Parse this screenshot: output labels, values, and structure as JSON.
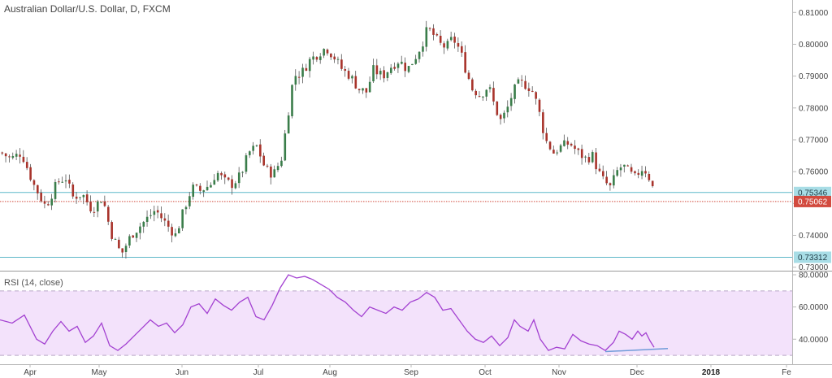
{
  "header": {
    "symbol_title": "Australian Dollar/U.S. Dollar, D, FXCM"
  },
  "rsi_panel": {
    "title": "RSI (14, close)"
  },
  "colors": {
    "bull": "#3a7d4a",
    "bear": "#a8332b",
    "hline": "#5fb8c9",
    "last_price": "#d24a3e",
    "rsi_line": "#a341d1",
    "rsi_fill": "#f3e2fb",
    "rsi_trend": "#6f9bd9"
  },
  "chart_data": [
    {
      "type": "candlestick",
      "title": "Australian Dollar/U.S. Dollar, D, FXCM",
      "ylim": [
        0.7289,
        0.8139
      ],
      "y_ticks": [
        "0.81000",
        "0.80000",
        "0.79000",
        "0.78000",
        "0.77000",
        "0.76000",
        "0.75000",
        "0.74000",
        "0.73000"
      ],
      "x_ticks": [
        "Apr",
        "May",
        "Jun",
        "Jul",
        "Aug",
        "Sep",
        "Oct",
        "Nov",
        "Dec",
        "2018",
        "Fe"
      ],
      "horizontal_lines": [
        {
          "value": 0.75346,
          "label": "0.75346",
          "style": "resistance"
        },
        {
          "value": 0.73312,
          "label": "0.73312",
          "style": "support"
        }
      ],
      "last_price": {
        "value": 0.75062,
        "label": "0.75062"
      },
      "path_anchors": [
        [
          0,
          0.766
        ],
        [
          12,
          0.764
        ],
        [
          25,
          0.766
        ],
        [
          40,
          0.756
        ],
        [
          55,
          0.749
        ],
        [
          70,
          0.757
        ],
        [
          80,
          0.758
        ],
        [
          88,
          0.752
        ],
        [
          100,
          0.753
        ],
        [
          112,
          0.748
        ],
        [
          125,
          0.752
        ],
        [
          135,
          0.741
        ],
        [
          148,
          0.734
        ],
        [
          160,
          0.74
        ],
        [
          175,
          0.744
        ],
        [
          190,
          0.748
        ],
        [
          205,
          0.743
        ],
        [
          215,
          0.74
        ],
        [
          225,
          0.748
        ],
        [
          235,
          0.755
        ],
        [
          245,
          0.754
        ],
        [
          258,
          0.756
        ],
        [
          265,
          0.76
        ],
        [
          275,
          0.757
        ],
        [
          285,
          0.756
        ],
        [
          295,
          0.759
        ],
        [
          305,
          0.766
        ],
        [
          315,
          0.768
        ],
        [
          325,
          0.761
        ],
        [
          335,
          0.759
        ],
        [
          345,
          0.764
        ],
        [
          352,
          0.776
        ],
        [
          360,
          0.79
        ],
        [
          370,
          0.791
        ],
        [
          380,
          0.795
        ],
        [
          390,
          0.797
        ],
        [
          400,
          0.799
        ],
        [
          410,
          0.796
        ],
        [
          420,
          0.792
        ],
        [
          430,
          0.79
        ],
        [
          440,
          0.786
        ],
        [
          450,
          0.785
        ],
        [
          458,
          0.792
        ],
        [
          470,
          0.79
        ],
        [
          480,
          0.793
        ],
        [
          490,
          0.795
        ],
        [
          500,
          0.792
        ],
        [
          510,
          0.796
        ],
        [
          518,
          0.8
        ],
        [
          525,
          0.805
        ],
        [
          532,
          0.803
        ],
        [
          540,
          0.8
        ],
        [
          548,
          0.799
        ],
        [
          556,
          0.802
        ],
        [
          565,
          0.798
        ],
        [
          572,
          0.792
        ],
        [
          580,
          0.786
        ],
        [
          590,
          0.784
        ],
        [
          600,
          0.787
        ],
        [
          608,
          0.78
        ],
        [
          615,
          0.776
        ],
        [
          622,
          0.779
        ],
        [
          630,
          0.785
        ],
        [
          638,
          0.788
        ],
        [
          648,
          0.787
        ],
        [
          655,
          0.785
        ],
        [
          662,
          0.779
        ],
        [
          670,
          0.77
        ],
        [
          680,
          0.766
        ],
        [
          690,
          0.768
        ],
        [
          700,
          0.769
        ],
        [
          710,
          0.766
        ],
        [
          720,
          0.764
        ],
        [
          728,
          0.765
        ],
        [
          735,
          0.76
        ],
        [
          742,
          0.757
        ],
        [
          750,
          0.755
        ],
        [
          758,
          0.76
        ],
        [
          765,
          0.762
        ],
        [
          772,
          0.76
        ],
        [
          780,
          0.758
        ],
        [
          788,
          0.761
        ],
        [
          795,
          0.76
        ],
        [
          802,
          0.755
        ],
        [
          806,
          0.7506
        ]
      ]
    },
    {
      "type": "line",
      "title": "RSI (14, close)",
      "ylim": [
        25,
        80
      ],
      "y_ticks": [
        "80.0000",
        "60.0000",
        "40.0000"
      ],
      "band": [
        30,
        70
      ],
      "series": [
        {
          "values": [
            [
              0,
              52
            ],
            [
              15,
              50
            ],
            [
              30,
              55
            ],
            [
              45,
              40
            ],
            [
              55,
              37
            ],
            [
              65,
              45
            ],
            [
              75,
              51
            ],
            [
              85,
              45
            ],
            [
              95,
              48
            ],
            [
              105,
              38
            ],
            [
              115,
              42
            ],
            [
              125,
              50
            ],
            [
              135,
              36
            ],
            [
              145,
              33
            ],
            [
              155,
              37
            ],
            [
              165,
              42
            ],
            [
              175,
              47
            ],
            [
              185,
              52
            ],
            [
              195,
              48
            ],
            [
              205,
              50
            ],
            [
              215,
              44
            ],
            [
              225,
              49
            ],
            [
              235,
              60
            ],
            [
              245,
              62
            ],
            [
              255,
              56
            ],
            [
              265,
              65
            ],
            [
              275,
              61
            ],
            [
              285,
              58
            ],
            [
              295,
              63
            ],
            [
              305,
              66
            ],
            [
              315,
              54
            ],
            [
              325,
              52
            ],
            [
              335,
              61
            ],
            [
              345,
              72
            ],
            [
              355,
              80
            ],
            [
              365,
              78
            ],
            [
              375,
              79
            ],
            [
              385,
              77
            ],
            [
              395,
              74
            ],
            [
              405,
              71
            ],
            [
              415,
              66
            ],
            [
              425,
              63
            ],
            [
              435,
              58
            ],
            [
              445,
              54
            ],
            [
              455,
              60
            ],
            [
              465,
              58
            ],
            [
              475,
              56
            ],
            [
              485,
              60
            ],
            [
              495,
              58
            ],
            [
              505,
              63
            ],
            [
              515,
              65
            ],
            [
              525,
              69
            ],
            [
              535,
              66
            ],
            [
              545,
              58
            ],
            [
              555,
              59
            ],
            [
              565,
              52
            ],
            [
              575,
              45
            ],
            [
              585,
              40
            ],
            [
              595,
              38
            ],
            [
              605,
              42
            ],
            [
              615,
              36
            ],
            [
              625,
              41
            ],
            [
              633,
              52
            ],
            [
              640,
              48
            ],
            [
              650,
              45
            ],
            [
              657,
              52
            ],
            [
              665,
              40
            ],
            [
              675,
              33
            ],
            [
              685,
              35
            ],
            [
              695,
              34
            ],
            [
              705,
              43
            ],
            [
              715,
              39
            ],
            [
              725,
              37
            ],
            [
              735,
              36
            ],
            [
              745,
              33
            ],
            [
              755,
              38
            ],
            [
              762,
              45
            ],
            [
              770,
              43
            ],
            [
              778,
              40
            ],
            [
              785,
              45
            ],
            [
              790,
              42
            ],
            [
              795,
              44
            ],
            [
              800,
              39
            ],
            [
              805,
              35
            ]
          ]
        }
      ],
      "trendline": {
        "from": [
          745,
          32.3
        ],
        "to": [
          822,
          34.2
        ]
      }
    }
  ]
}
